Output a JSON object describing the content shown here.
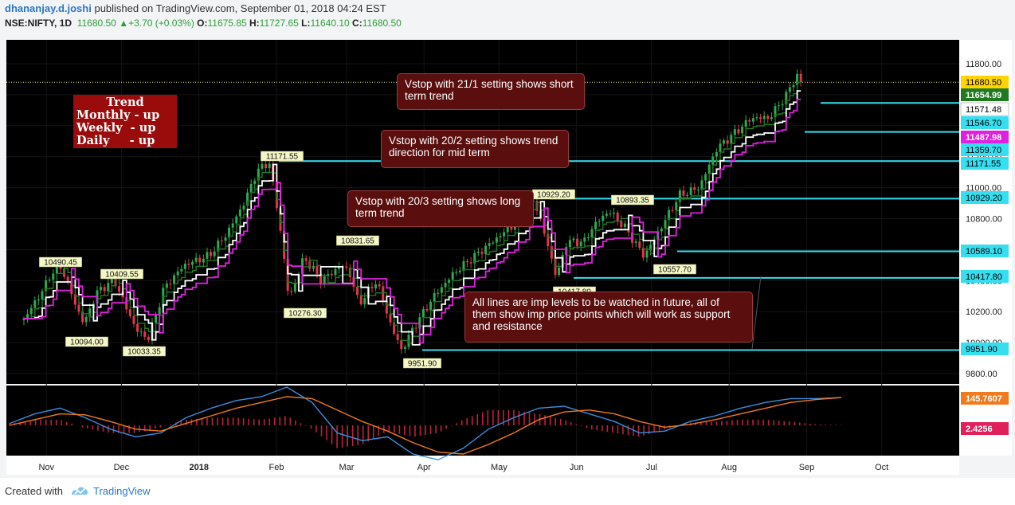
{
  "header": {
    "author": "dhananjay.d.joshi",
    "published": "published on TradingView.com, September 01, 2018 04:24 EST",
    "symbol": "NSE:NIFTY, 1D",
    "last": "11680.50",
    "change": "+3.70 (+0.03%)",
    "open": "11675.85",
    "high": "11727.65",
    "low": "11640.10",
    "close": "11680.50"
  },
  "trend_box": {
    "title": "Trend",
    "lines": [
      "Monthly - up",
      "Weekly  - up",
      "Daily     - up"
    ]
  },
  "notes": {
    "n1": "Vstop with 21/1 setting shows short term trend",
    "n2": "Vstop with 20/2 setting shows trend direction for mid term",
    "n3": "Vstop with 20/3 setting shows long term trend",
    "n4": "All lines are imp levels to be watched in future, all of them show imp price points which will work as support and resistance"
  },
  "footer": {
    "created_with": "Created with",
    "brand": "TradingView"
  },
  "colors": {
    "background": "#000000",
    "up_candle": "#2fa84f",
    "down_candle": "#e0374a",
    "level_line": "#35dff0",
    "vstop_short": "#1f7a1f",
    "vstop_mid": "#ffffff",
    "vstop_long": "#e020e0",
    "macd": "#3a8fe0",
    "signal": "#f07a1e",
    "histogram": "#c0203a"
  },
  "chart_data": [
    {
      "type": "candlestick",
      "title": "",
      "ylim": [
        9700,
        11900
      ],
      "y_ticks": [
        9800,
        10000,
        10200,
        10400,
        10600,
        10800,
        11000,
        11200,
        11400,
        11600,
        11800
      ],
      "y_tick_labels": [
        "9800.00",
        "10000.00",
        "10200.00",
        "10400.00",
        "10600.00",
        "10800.00",
        "11000.00",
        "11200.00",
        "11400.00",
        "11600.00",
        "11800.00"
      ],
      "x_tick_labels": [
        "Nov",
        "Dec",
        "2018",
        "Feb",
        "Mar",
        "Apr",
        "May",
        "Jun",
        "Jul",
        "Aug",
        "Sep",
        "Oct"
      ],
      "close_path": [
        [
          "2017-10-23",
          10150
        ],
        [
          "2017-10-31",
          10350
        ],
        [
          "2017-11-03",
          10450
        ],
        [
          "2017-11-07",
          10490
        ],
        [
          "2017-11-13",
          10230
        ],
        [
          "2017-11-16",
          10120
        ],
        [
          "2017-11-21",
          10320
        ],
        [
          "2017-11-28",
          10409
        ],
        [
          "2017-12-05",
          10150
        ],
        [
          "2017-12-08",
          10060
        ],
        [
          "2017-12-12",
          10033
        ],
        [
          "2017-12-18",
          10350
        ],
        [
          "2017-12-26",
          10500
        ],
        [
          "2018-01-05",
          10560
        ],
        [
          "2018-01-12",
          10700
        ],
        [
          "2018-01-19",
          10900
        ],
        [
          "2018-01-24",
          11100
        ],
        [
          "2018-01-29",
          11171
        ],
        [
          "2018-02-02",
          10800
        ],
        [
          "2018-02-06",
          10276
        ],
        [
          "2018-02-12",
          10550
        ],
        [
          "2018-02-19",
          10400
        ],
        [
          "2018-02-27",
          10500
        ],
        [
          "2018-03-02",
          10460
        ],
        [
          "2018-03-06",
          10250
        ],
        [
          "2018-03-13",
          10400
        ],
        [
          "2018-03-19",
          10100
        ],
        [
          "2018-03-23",
          9951.9
        ],
        [
          "2018-03-28",
          10100
        ],
        [
          "2018-04-05",
          10300
        ],
        [
          "2018-04-13",
          10450
        ],
        [
          "2018-04-23",
          10580
        ],
        [
          "2018-05-02",
          10700
        ],
        [
          "2018-05-10",
          10800
        ],
        [
          "2018-05-15",
          10929
        ],
        [
          "2018-05-21",
          10600
        ],
        [
          "2018-05-24",
          10417.8
        ],
        [
          "2018-05-28",
          10650
        ],
        [
          "2018-06-04",
          10650
        ],
        [
          "2018-06-08",
          10760
        ],
        [
          "2018-06-14",
          10850
        ],
        [
          "2018-06-20",
          10750
        ],
        [
          "2018-06-28",
          10557.7
        ],
        [
          "2018-07-05",
          10750
        ],
        [
          "2018-07-12",
          10950
        ],
        [
          "2018-07-20",
          11000
        ],
        [
          "2018-07-27",
          11250
        ],
        [
          "2018-08-03",
          11350
        ],
        [
          "2018-08-10",
          11450
        ],
        [
          "2018-08-17",
          11450
        ],
        [
          "2018-08-24",
          11600
        ],
        [
          "2018-08-28",
          11727
        ],
        [
          "2018-08-31",
          11680.5
        ]
      ],
      "vstop_21_1_last": 11654.99,
      "vstop_20_2_last": 11571.48,
      "vstop_20_3_last": 11487.98,
      "last_price": 11680.5,
      "levels": [
        11546.7,
        11359.7,
        11171.55,
        10929.2,
        10589.1,
        10417.8,
        9951.9
      ],
      "price_tags": [
        "11680.50",
        "11654.99",
        "11571.48",
        "11546.70",
        "11487.98",
        "11359.70",
        "11171.55",
        "10929.20",
        "10589.10",
        "10417.80",
        "9951.90"
      ],
      "annotations": [
        "11171.55",
        "10929.20",
        "10893.35",
        "10831.65",
        "10490.45",
        "10409.55",
        "10276.30",
        "10094.00",
        "10033.35",
        "10417.80",
        "10557.70",
        "9951.90"
      ]
    },
    {
      "type": "line",
      "title": "",
      "series": [
        {
          "values": [
            10,
            60,
            90,
            40,
            -20,
            -60,
            -40,
            40,
            90,
            130,
            150,
            200,
            120,
            -40,
            -80,
            -60,
            -150,
            -180,
            -120,
            -20,
            40,
            90,
            100,
            60,
            20,
            -40,
            -30,
            20,
            50,
            90,
            120,
            140,
            140,
            145
          ]
        },
        {
          "values": [
            0,
            30,
            60,
            55,
            20,
            -20,
            -30,
            10,
            50,
            90,
            120,
            150,
            140,
            80,
            20,
            -30,
            -90,
            -140,
            -150,
            -100,
            -40,
            30,
            70,
            80,
            60,
            20,
            -10,
            5,
            30,
            60,
            90,
            120,
            135,
            145.76
          ]
        },
        {
          "values": [
            10,
            30,
            30,
            -15,
            -40,
            -40,
            -10,
            30,
            40,
            40,
            30,
            50,
            -20,
            -120,
            -100,
            -30,
            -60,
            -40,
            30,
            80,
            80,
            60,
            30,
            -20,
            -40,
            -60,
            -20,
            15,
            20,
            30,
            30,
            20,
            5,
            2.4256
          ]
        }
      ],
      "value_tags": [
        "145.7607",
        "2.4256"
      ]
    }
  ]
}
